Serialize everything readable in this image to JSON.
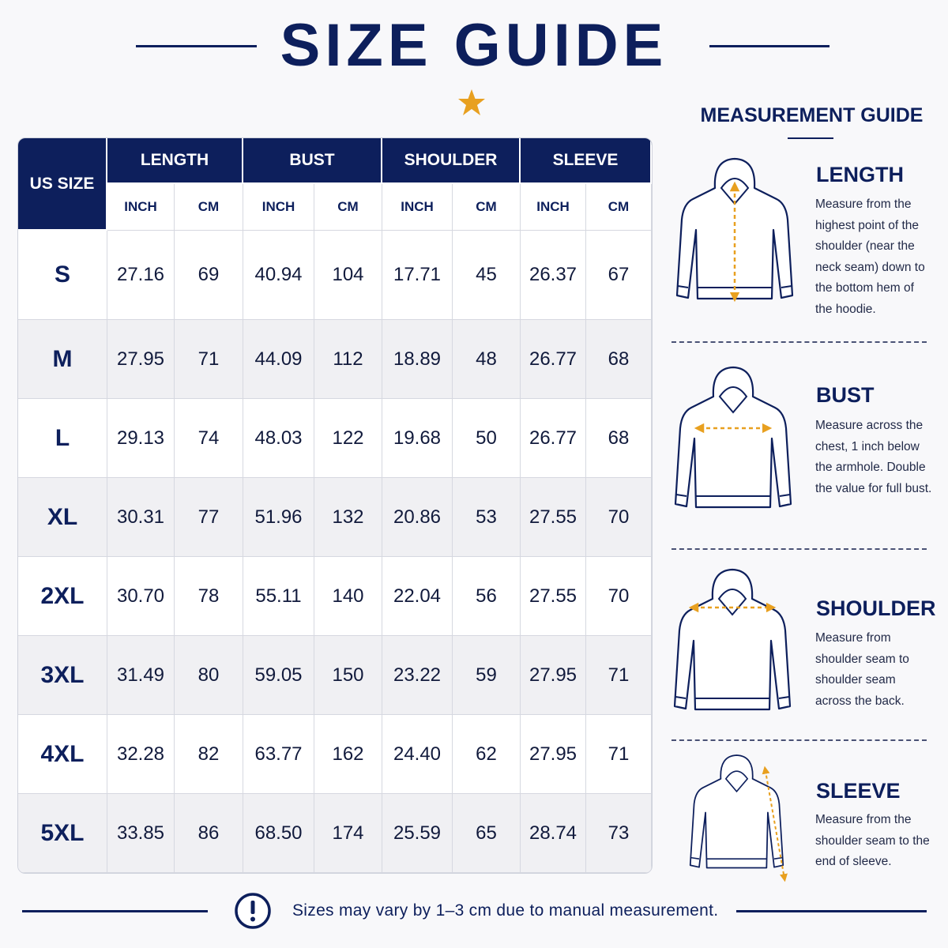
{
  "header": {
    "title": "SIZE GUIDE"
  },
  "table": {
    "size_header": "US SIZE",
    "groups": [
      "LENGTH",
      "BUST",
      "SHOULDER",
      "SLEEVE"
    ],
    "units": [
      "INCH",
      "CM"
    ],
    "rows": [
      [
        "S",
        "27.16",
        "69",
        "40.94",
        "104",
        "17.71",
        "45",
        "26.37",
        "67"
      ],
      [
        "M",
        "27.95",
        "71",
        "44.09",
        "112",
        "18.89",
        "48",
        "26.77",
        "68"
      ],
      [
        "L",
        "29.13",
        "74",
        "48.03",
        "122",
        "19.68",
        "50",
        "26.77",
        "68"
      ],
      [
        "XL",
        "30.31",
        "77",
        "51.96",
        "132",
        "20.86",
        "53",
        "27.55",
        "70"
      ],
      [
        "2XL",
        "30.70",
        "78",
        "55.11",
        "140",
        "22.04",
        "56",
        "27.55",
        "70"
      ],
      [
        "3XL",
        "31.49",
        "80",
        "59.05",
        "150",
        "23.22",
        "59",
        "27.95",
        "71"
      ],
      [
        "4XL",
        "32.28",
        "82",
        "63.77",
        "162",
        "24.40",
        "62",
        "27.95",
        "71"
      ],
      [
        "5XL",
        "33.85",
        "86",
        "68.50",
        "174",
        "25.59",
        "65",
        "28.74",
        "73"
      ]
    ]
  },
  "guide": {
    "title": "MEASUREMENT GUIDE",
    "sections": [
      {
        "heading": "LENGTH",
        "text": "Measure from the highest point of the shoulder (near the neck seam) down to the bottom hem of the hoodie."
      },
      {
        "heading": "BUST",
        "text": "Measure across the chest, 1 inch below the armhole. Double the value for full bust."
      },
      {
        "heading": "SHOULDER",
        "text": "Measure from shoulder seam to shoulder seam across the back."
      },
      {
        "heading": "SLEEVE",
        "text": "Measure from the shoulder seam to the end of sleeve."
      }
    ]
  },
  "footer": {
    "note": "Sizes may vary by 1–3 cm due to manual measurement."
  }
}
